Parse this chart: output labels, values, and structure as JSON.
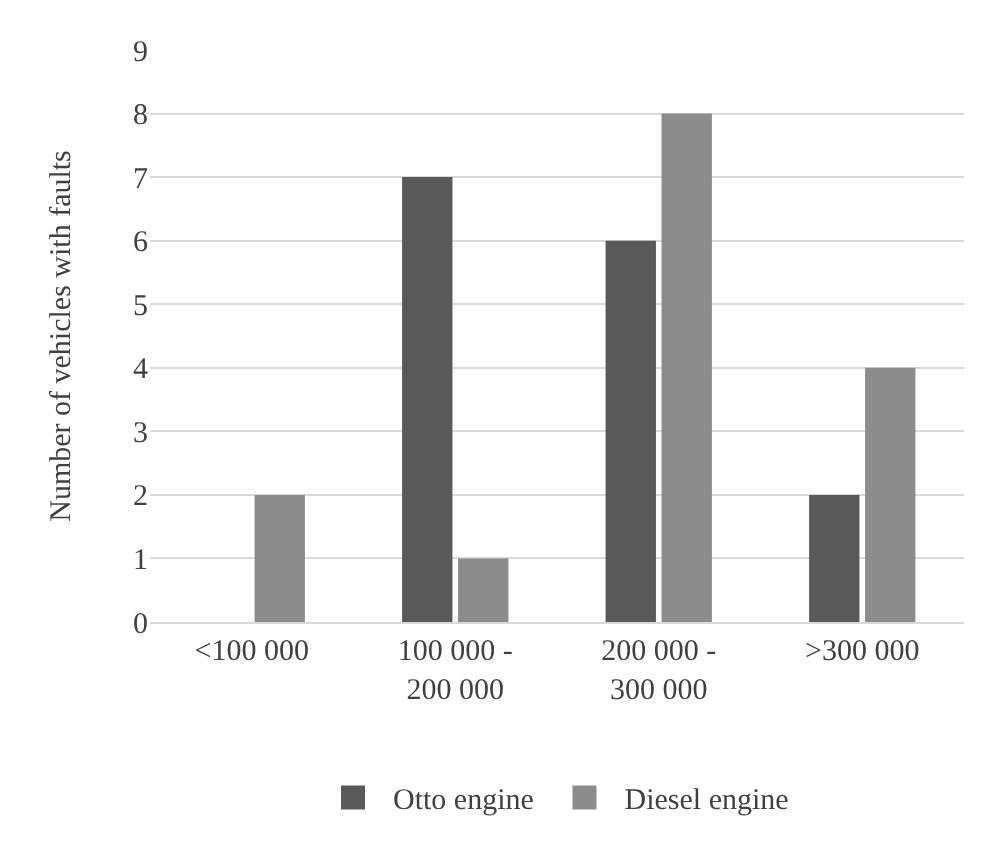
{
  "chart_data": {
    "type": "bar",
    "ylabel": "Number of vehicles with faults",
    "categories": [
      "<100 000",
      "100 000 - 200 000",
      "200 000 - 300 000",
      ">300 000"
    ],
    "series": [
      {
        "name": "Otto engine",
        "color": "#595959",
        "values": [
          0,
          7,
          6,
          2
        ]
      },
      {
        "name": "Diesel engine",
        "color": "#8c8c8c",
        "values": [
          2,
          1,
          8,
          4
        ]
      }
    ],
    "ylim": [
      0,
      9
    ],
    "yticks": [
      0,
      1,
      2,
      3,
      4,
      5,
      6,
      7,
      8,
      9
    ],
    "grid": "y",
    "legend": "bottom"
  }
}
